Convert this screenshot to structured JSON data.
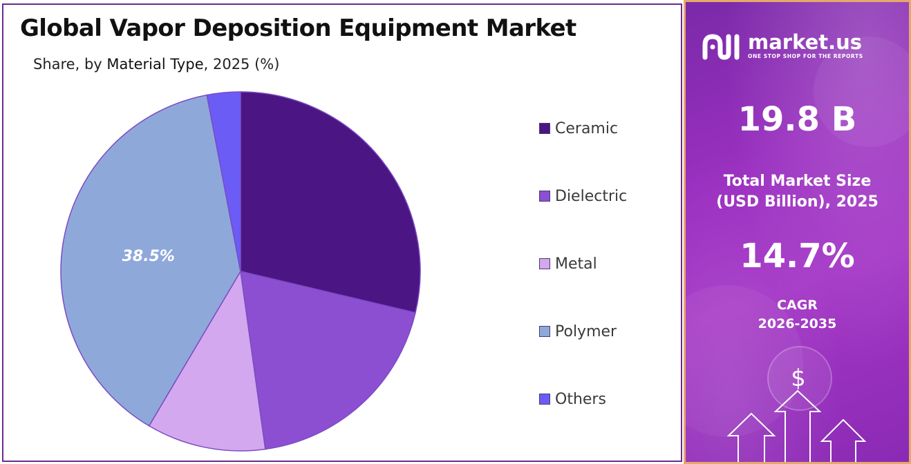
{
  "title": "Global Vapor Deposition Equipment Market",
  "subtitle": {
    "prefix": "Share, by ",
    "emphasis": "Material Type",
    "suffix": ", 2025 (%)"
  },
  "chart_data": {
    "type": "pie",
    "categories": [
      "Ceramic",
      "Dielectric",
      "Metal",
      "Polymer",
      "Others"
    ],
    "values": [
      28.7,
      19.1,
      10.7,
      38.5,
      3.0
    ],
    "colors": [
      "#4b1683",
      "#8c4fd2",
      "#d3a8ee",
      "#8ea8da",
      "#6b5cf6"
    ],
    "data_labels": [
      "",
      "",
      "",
      "38.5%",
      ""
    ],
    "start": "top, clockwise",
    "legend_position": "right"
  },
  "brand": {
    "name": "market.us",
    "tagline": "ONE STOP SHOP FOR THE REPORTS"
  },
  "stats": {
    "market_size_value": "19.8 B",
    "market_size_label_line1": "Total Market Size",
    "market_size_label_line2": "(USD Billion), 2025",
    "cagr_value": "14.7%",
    "cagr_label_line1": "CAGR",
    "cagr_label_line2": "2026-2035"
  },
  "decor": {
    "dollar_symbol": "$",
    "panel_border_color": "#e6a96a",
    "panel_gradient": [
      "#7a2aa8",
      "#a436c6"
    ]
  }
}
